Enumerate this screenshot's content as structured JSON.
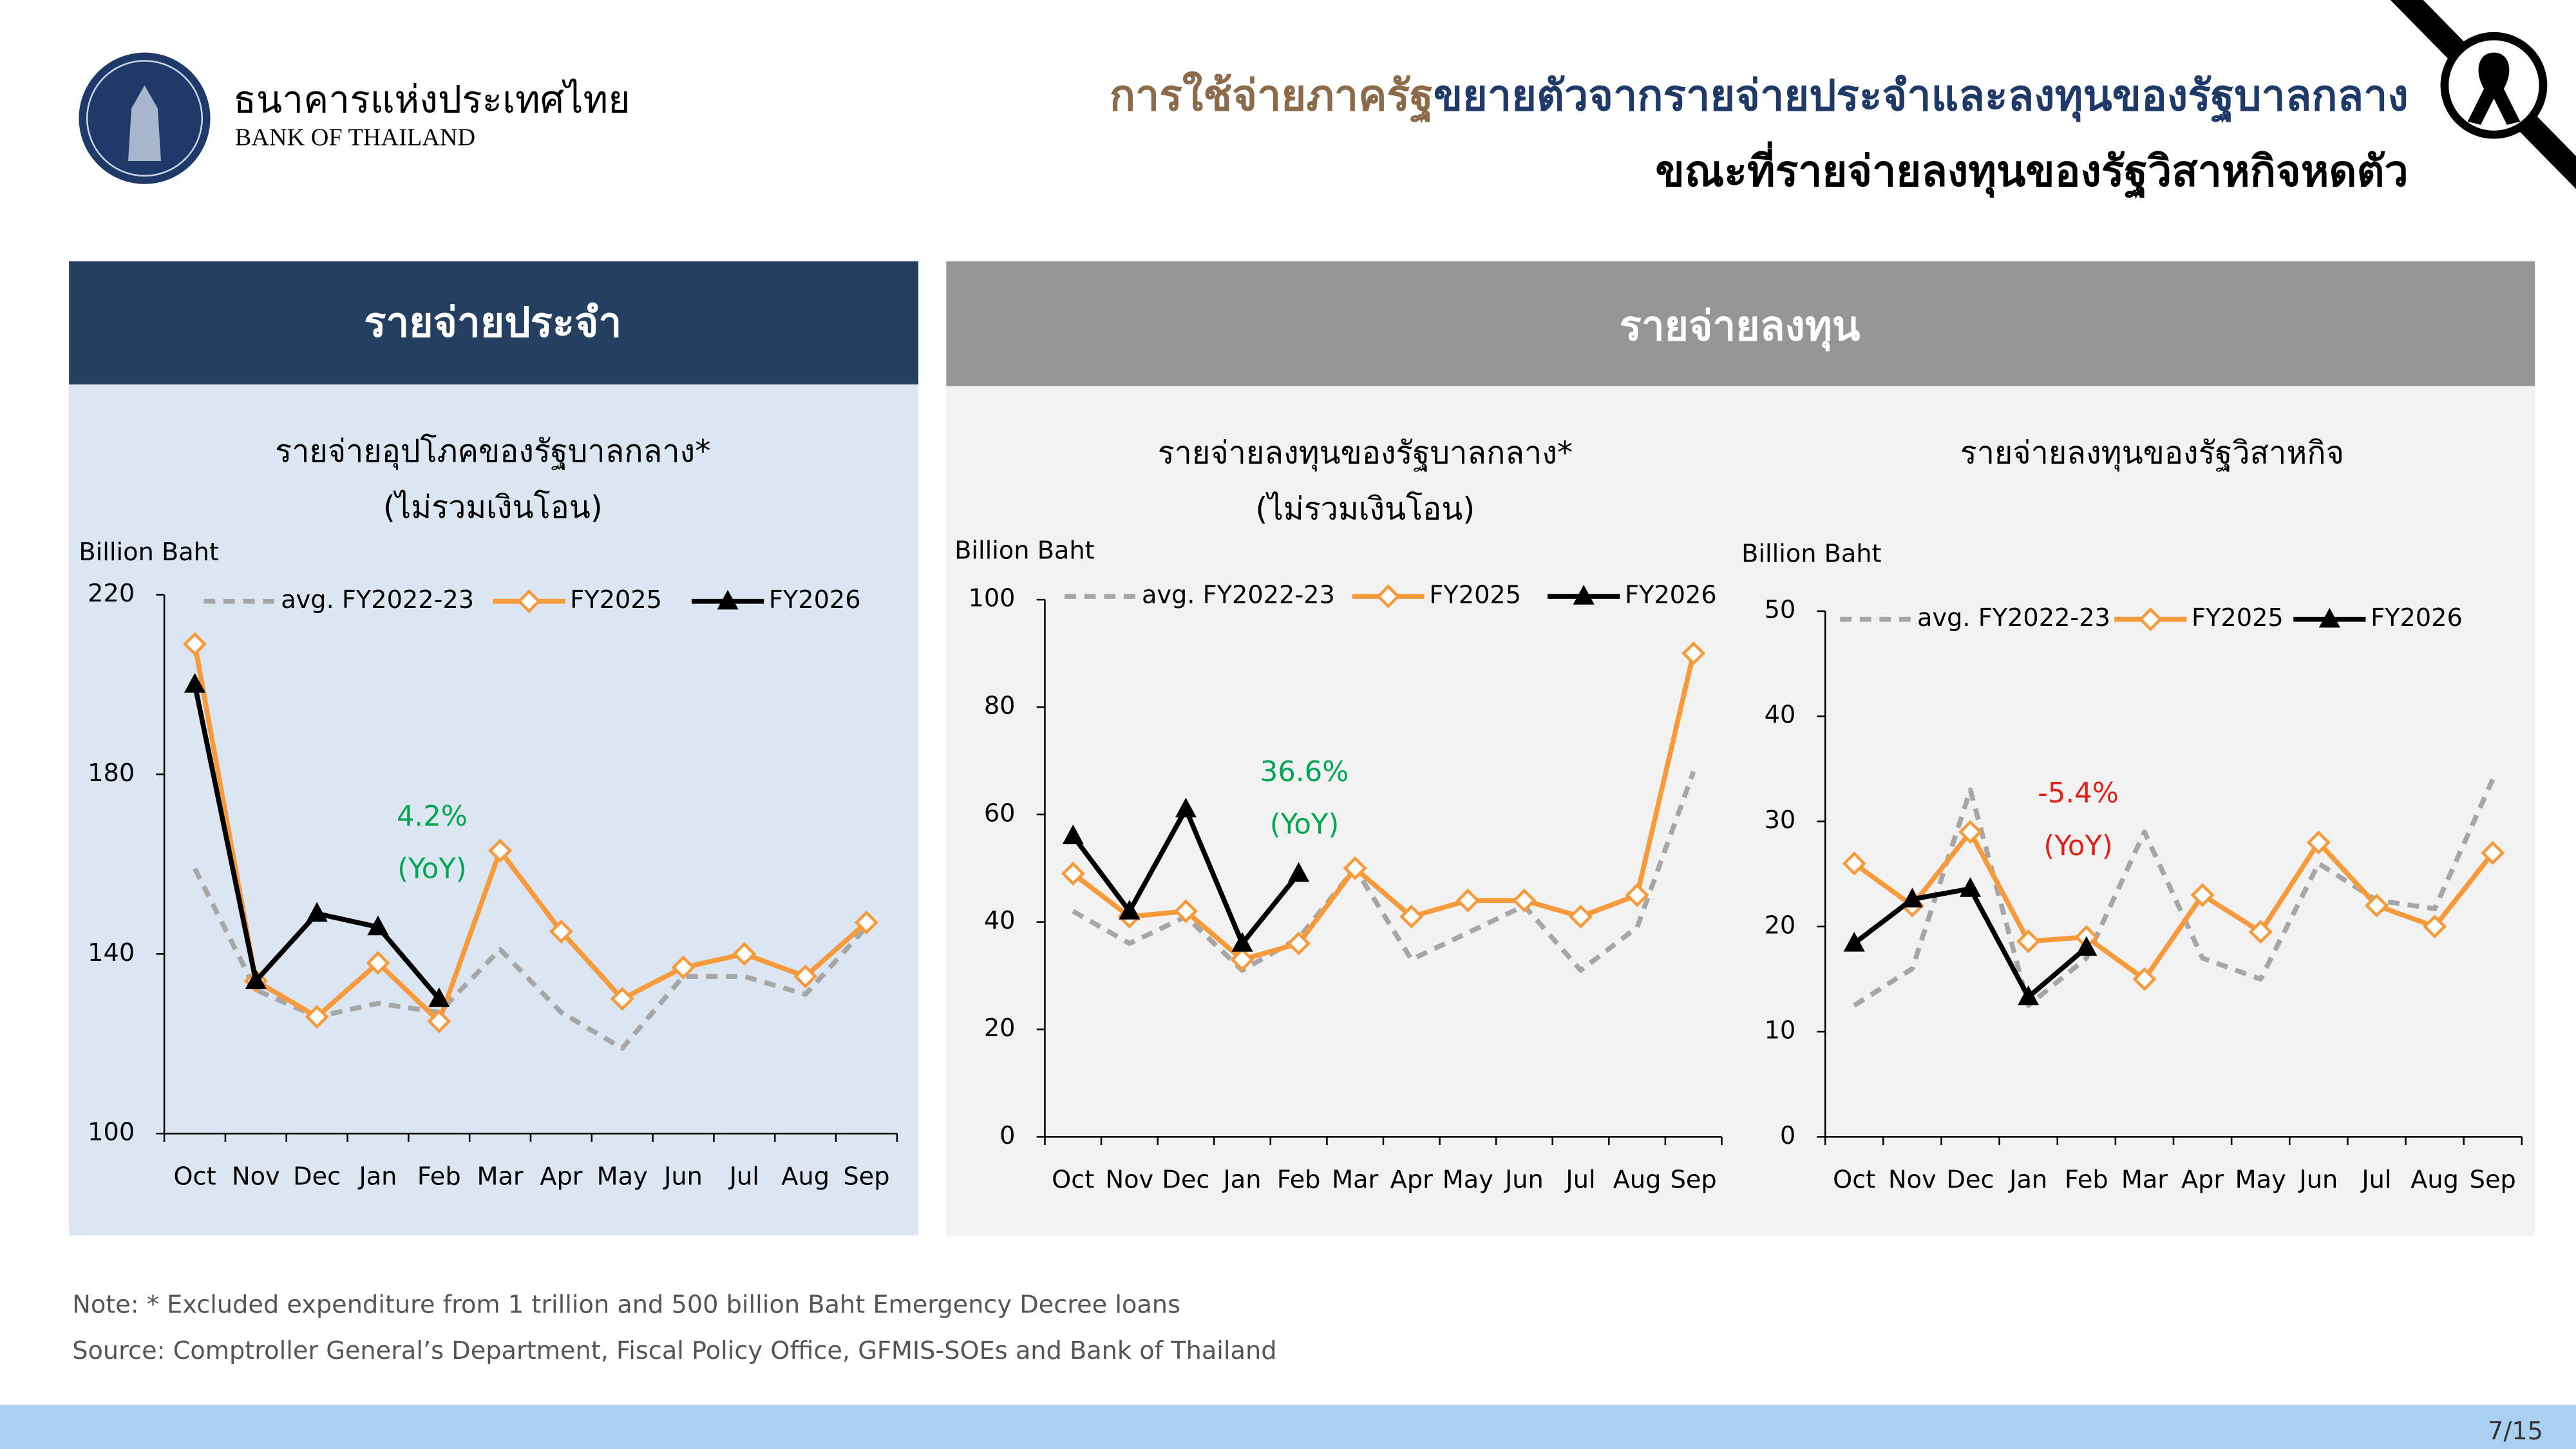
{
  "header": {
    "bank_name_th": "ธนาคารแห่งประเทศไทย",
    "bank_name_en": "BANK OF THAILAND",
    "title_highlight": "การใช้จ่ายภาครัฐ",
    "title_rest": "ขยายตัวจากรายจ่ายประจำและลงทุนของรัฐบาลกลาง",
    "title_line2": "ขณะที่รายจ่ายลงทุนของรัฐวิสาหกิจหดตัว"
  },
  "panels": [
    "รายจ่ายประจำ",
    "รายจ่ายลงทุน"
  ],
  "chart_data": [
    {
      "type": "line",
      "title": "รายจ่ายอุปโภคของรัฐบาลกลาง*",
      "subtitle": "(ไม่รวมเงินโอน)",
      "y_label": "Billion Baht",
      "categories": [
        "Oct",
        "Nov",
        "Dec",
        "Jan",
        "Feb",
        "Mar",
        "Apr",
        "May",
        "Jun",
        "Jul",
        "Aug",
        "Sep"
      ],
      "series": [
        {
          "name": "avg. FY2022-23",
          "color": "#a6a6a6",
          "line_style": "dashed",
          "marker": "none",
          "values": [
            159,
            132,
            126,
            129,
            127,
            141,
            127,
            119,
            135,
            135,
            131,
            146
          ]
        },
        {
          "name": "FY2025",
          "color": "#f79a3b",
          "line_style": "solid",
          "marker": "diamond",
          "values": [
            209,
            134,
            126,
            138,
            125,
            163,
            145,
            130,
            137,
            140,
            135,
            147
          ]
        },
        {
          "name": "FY2026",
          "color": "#000000",
          "line_style": "solid",
          "marker": "triangle",
          "values": [
            200,
            134,
            149,
            146,
            130,
            null,
            null,
            null,
            null,
            null,
            null,
            null
          ]
        }
      ],
      "ylim": [
        100,
        220
      ],
      "yticks": [
        100,
        140,
        180,
        220
      ],
      "annotation": {
        "lines": [
          "4.2%",
          "(YoY)"
        ],
        "color": "#00a651"
      }
    },
    {
      "type": "line",
      "title": "รายจ่ายลงทุนของรัฐบาลกลาง*",
      "subtitle": "(ไม่รวมเงินโอน)",
      "y_label": "Billion Baht",
      "categories": [
        "Oct",
        "Nov",
        "Dec",
        "Jan",
        "Feb",
        "Mar",
        "Apr",
        "May",
        "Jun",
        "Jul",
        "Aug",
        "Sep"
      ],
      "series": [
        {
          "name": "avg. FY2022-23",
          "color": "#a6a6a6",
          "line_style": "dashed",
          "marker": "none",
          "values": [
            42,
            36,
            41,
            31,
            37,
            50,
            33,
            38,
            43,
            31,
            39,
            68
          ]
        },
        {
          "name": "FY2025",
          "color": "#f79a3b",
          "line_style": "solid",
          "marker": "diamond",
          "values": [
            49,
            41,
            42,
            33,
            36,
            50,
            41,
            44,
            44,
            41,
            45,
            90
          ]
        },
        {
          "name": "FY2026",
          "color": "#000000",
          "line_style": "solid",
          "marker": "triangle",
          "values": [
            56,
            42,
            61,
            36,
            49,
            null,
            null,
            null,
            null,
            null,
            null,
            null
          ]
        }
      ],
      "ylim": [
        0,
        100
      ],
      "yticks": [
        0,
        20,
        40,
        60,
        80,
        100
      ],
      "annotation": {
        "lines": [
          "36.6%",
          "(YoY)"
        ],
        "color": "#00a651"
      }
    },
    {
      "type": "line",
      "title": "รายจ่ายลงทุนของรัฐวิสาหกิจ",
      "y_label": "Billion Baht",
      "categories": [
        "Oct",
        "Nov",
        "Dec",
        "Jan",
        "Feb",
        "Mar",
        "Apr",
        "May",
        "Jun",
        "Jul",
        "Aug",
        "Sep"
      ],
      "series": [
        {
          "name": "avg. FY2022-23",
          "color": "#a6a6a6",
          "line_style": "dashed",
          "marker": "none",
          "values": [
            12.5,
            16,
            33,
            12.5,
            17,
            29,
            17,
            15,
            26,
            22.5,
            21.7,
            34
          ]
        },
        {
          "name": "FY2025",
          "color": "#f79a3b",
          "line_style": "solid",
          "marker": "diamond",
          "values": [
            26,
            22,
            29,
            18.6,
            19,
            15,
            23,
            19.5,
            28,
            22,
            20,
            27
          ]
        },
        {
          "name": "FY2026",
          "color": "#000000",
          "line_style": "solid",
          "marker": "triangle",
          "values": [
            18.4,
            22.6,
            23.6,
            13.3,
            18,
            null,
            null,
            null,
            null,
            null,
            null,
            null
          ]
        }
      ],
      "ylim": [
        0,
        50
      ],
      "yticks": [
        0,
        10,
        20,
        30,
        40,
        50
      ],
      "annotation": {
        "lines": [
          "-5.4%",
          "(YoY)"
        ],
        "color": "#e0201b"
      }
    }
  ],
  "footer": {
    "note": "Note: * Excluded expenditure from 1 trillion and 500 billion Baht Emergency Decree loans",
    "source": "Source: Comptroller General’s Department, Fiscal Policy Office, GFMIS-SOEs and Bank of Thailand",
    "page": "7/15"
  }
}
